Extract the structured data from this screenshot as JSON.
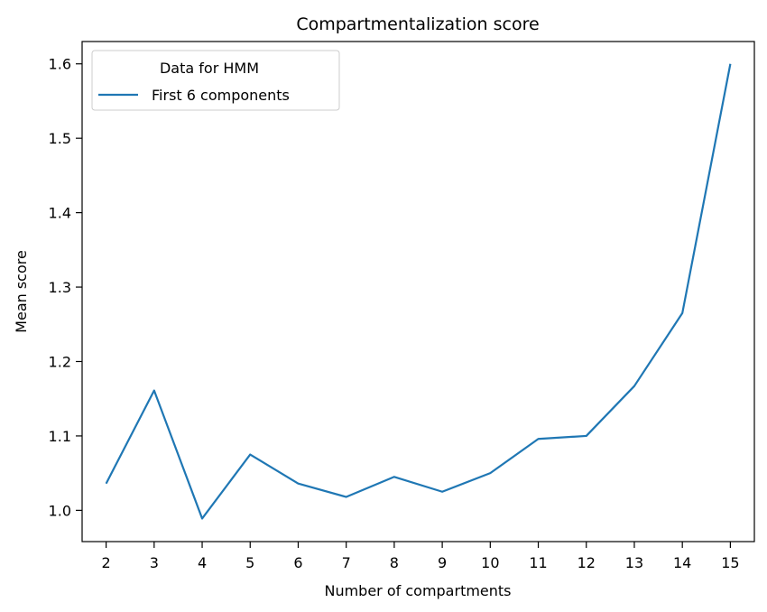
{
  "chart_data": {
    "type": "line",
    "title": "Compartmentalization score",
    "xlabel": "Number of compartments",
    "ylabel": "Mean score",
    "xlim": [
      1.5,
      15.5
    ],
    "ylim": [
      0.958,
      1.63
    ],
    "x_ticks": [
      2,
      3,
      4,
      5,
      6,
      7,
      8,
      9,
      10,
      11,
      12,
      13,
      14,
      15
    ],
    "y_ticks": [
      1.0,
      1.1,
      1.2,
      1.3,
      1.4,
      1.5,
      1.6
    ],
    "grid": false,
    "legend": {
      "placement": "top-left",
      "title": "Data for HMM"
    },
    "series": [
      {
        "name": "First 6 components",
        "color": "#1f77b4",
        "x": [
          2,
          3,
          4,
          5,
          6,
          7,
          8,
          9,
          10,
          11,
          12,
          13,
          14,
          15
        ],
        "y": [
          1.036,
          1.161,
          0.989,
          1.075,
          1.036,
          1.018,
          1.045,
          1.025,
          1.05,
          1.096,
          1.1,
          1.167,
          1.265,
          1.6
        ]
      }
    ]
  }
}
